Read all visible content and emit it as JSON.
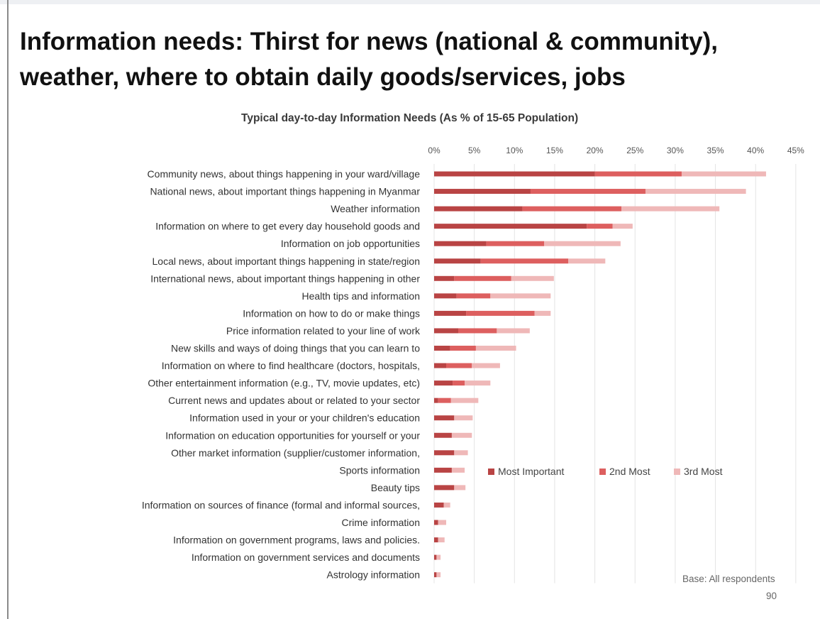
{
  "slide": {
    "title": "Information needs: Thirst for news (national & community), weather, where to obtain daily goods/services, jobs",
    "base_note": "Base: All respondents",
    "page_number": "90"
  },
  "chart_data": {
    "type": "bar",
    "orientation": "horizontal",
    "stacked": true,
    "title": "Typical day-to-day Information Needs (As % of 15-65 Population)",
    "xlabel": "",
    "ylabel": "",
    "xlim": [
      0,
      45
    ],
    "x_ticks": [
      "0%",
      "5%",
      "10%",
      "15%",
      "20%",
      "25%",
      "30%",
      "35%",
      "40%",
      "45%"
    ],
    "gridlines": true,
    "legend_position": "right",
    "colors": [
      "#b94444",
      "#dd5f5f",
      "#efb8b8"
    ],
    "categories": [
      "Community news, about things happening in your ward/village",
      "National news, about important things happening in Myanmar",
      "Weather information",
      "Information on where to get every day household goods and",
      "Information on job opportunities",
      "Local news, about important things happening in state/region",
      "International news, about important things happening in other",
      "Health tips and information",
      "Information on how to do or make things",
      "Price information related to your line of work",
      "New skills and ways of doing things that you can learn to",
      "Information on where to find healthcare (doctors, hospitals,",
      "Other entertainment information (e.g., TV, movie updates, etc)",
      "Current news and  updates about or related to your sector",
      "Information used in your or your children's education",
      "Information on education opportunities for yourself or your",
      "Other market information (supplier/customer information,",
      "Sports information",
      "Beauty tips",
      "Information on sources of finance (formal and informal sources,",
      "Crime information",
      "Information on government programs, laws and policies.",
      "Information on government services and documents",
      "Astrology information"
    ],
    "series": [
      {
        "name": "Most Important",
        "values": [
          20,
          12,
          11,
          19,
          6.5,
          5.8,
          2.5,
          2.8,
          4,
          3,
          2,
          1.5,
          2.3,
          0.5,
          2.5,
          2.2,
          2.5,
          2.2,
          2.5,
          1.2,
          0.5,
          0.5,
          0.3,
          0.3
        ]
      },
      {
        "name": "2nd Most",
        "values": [
          10.8,
          14.3,
          12.3,
          3.2,
          7.2,
          10.9,
          7.1,
          4.2,
          8.5,
          4.8,
          3.2,
          3.2,
          1.5,
          1.6,
          0,
          0,
          0,
          0,
          0,
          0,
          0,
          0,
          0,
          0
        ]
      },
      {
        "name": "3rd Most",
        "values": [
          10.5,
          12.5,
          12.2,
          2.5,
          9.5,
          4.6,
          5.3,
          7.5,
          2,
          4.1,
          5,
          3.5,
          3.2,
          3.4,
          2.3,
          2.5,
          1.7,
          1.6,
          1.4,
          0.8,
          1,
          0.8,
          0.5,
          0.5
        ]
      }
    ]
  }
}
